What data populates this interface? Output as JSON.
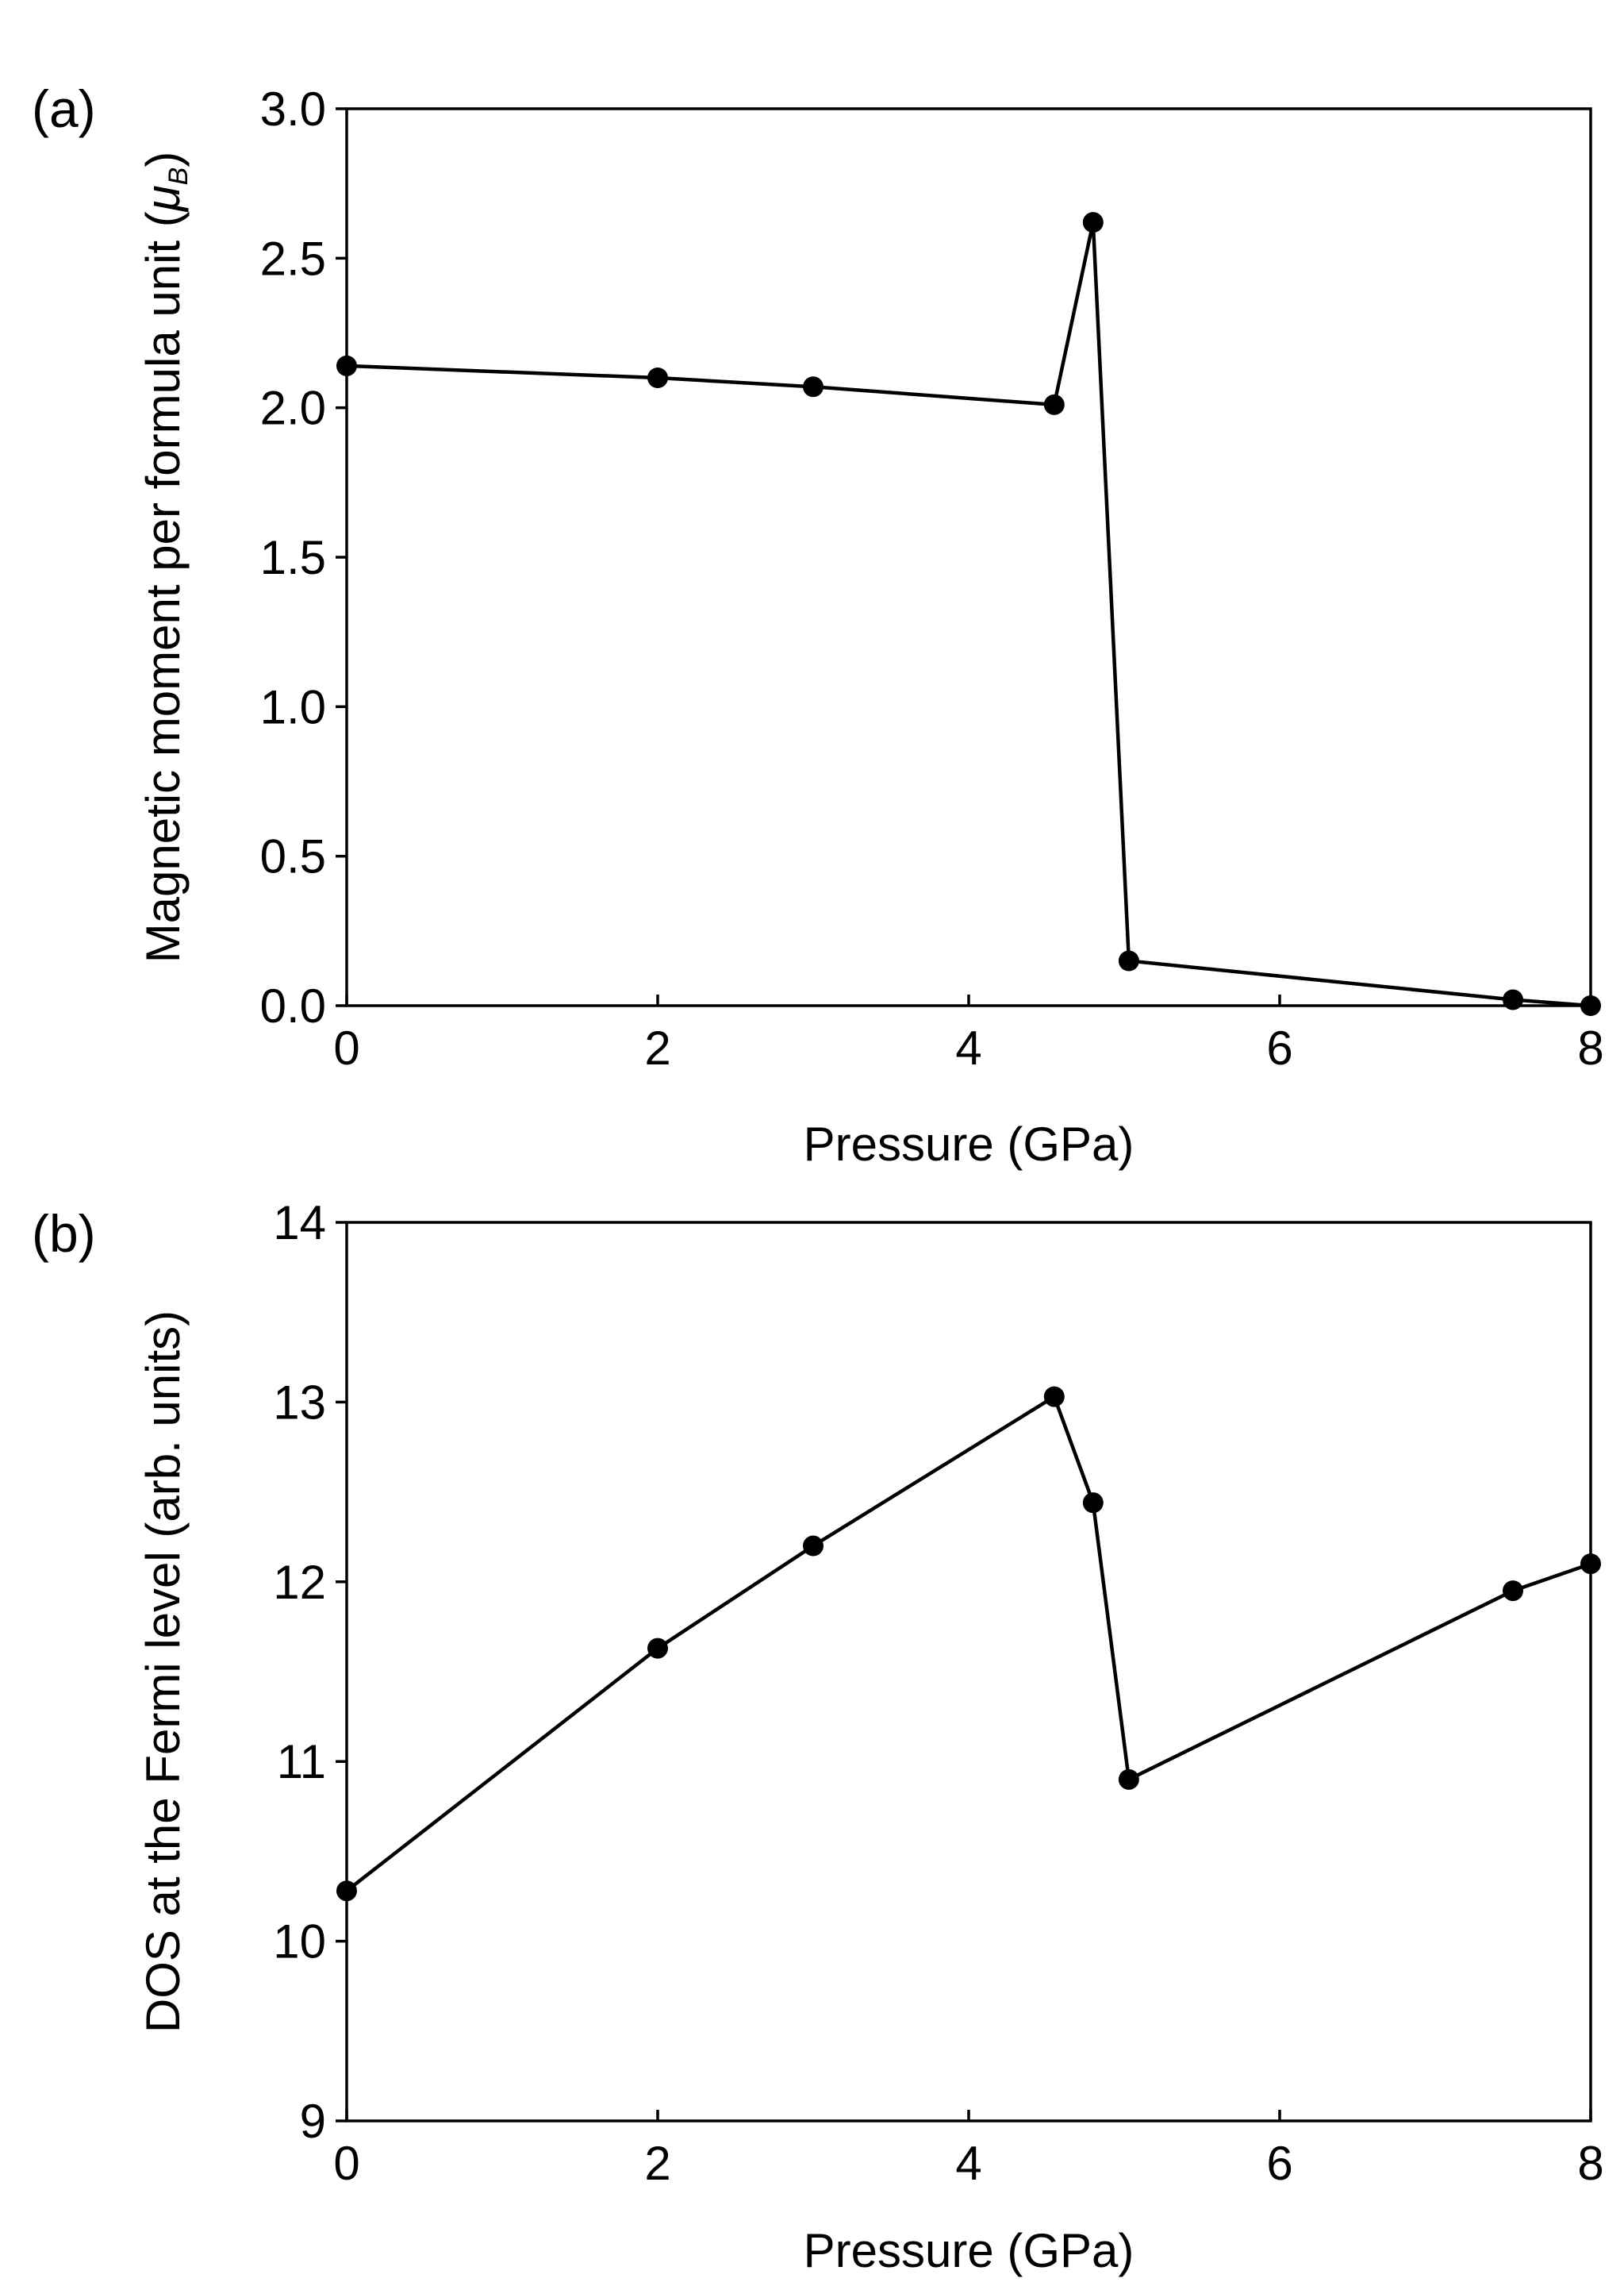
{
  "chart_data": [
    {
      "type": "line",
      "panel_label": "(a)",
      "title": "",
      "xlabel": "Pressure (GPa)",
      "ylabel": "Magnetic moment per formula unit (",
      "ylabel_symbol": "μ",
      "ylabel_subscript": "B",
      "ylabel_close": ")",
      "xlim": [
        0,
        8
      ],
      "ylim": [
        0,
        3
      ],
      "xticks": [
        0,
        2,
        4,
        6,
        8
      ],
      "xtick_labels": [
        "0",
        "2",
        "4",
        "6",
        "8"
      ],
      "yticks": [
        0,
        0.5,
        1,
        1.5,
        2,
        2.5,
        3
      ],
      "ytick_labels": [
        "0.0",
        "0.5",
        "1.0",
        "1.5",
        "2.0",
        "2.5",
        "3.0"
      ],
      "grid": false,
      "series": [
        {
          "name": "Magnetic moment",
          "x": [
            0,
            2,
            3,
            4.55,
            4.8,
            5.03,
            7.5,
            8
          ],
          "y": [
            2.14,
            2.1,
            2.07,
            2.01,
            2.62,
            0.15,
            0.02,
            0.0
          ]
        }
      ]
    },
    {
      "type": "line",
      "panel_label": "(b)",
      "title": "",
      "xlabel": "Pressure (GPa)",
      "ylabel": "DOS at the Fermi level (arb. units)",
      "xlim": [
        0,
        8
      ],
      "ylim": [
        9,
        14
      ],
      "xticks": [
        0,
        2,
        4,
        6,
        8
      ],
      "xtick_labels": [
        "0",
        "2",
        "4",
        "6",
        "8"
      ],
      "yticks": [
        9,
        10,
        11,
        12,
        13,
        14
      ],
      "ytick_labels": [
        "9",
        "10",
        "11",
        "12",
        "13",
        "14"
      ],
      "grid": false,
      "series": [
        {
          "name": "DOS",
          "x": [
            0,
            2,
            3,
            4.55,
            4.8,
            5.03,
            7.5,
            8
          ],
          "y": [
            10.28,
            11.63,
            12.2,
            13.03,
            12.44,
            10.9,
            11.95,
            12.1
          ]
        }
      ]
    }
  ],
  "colors": {
    "line": "#000000",
    "marker": "#000000",
    "background": "#ffffff"
  }
}
